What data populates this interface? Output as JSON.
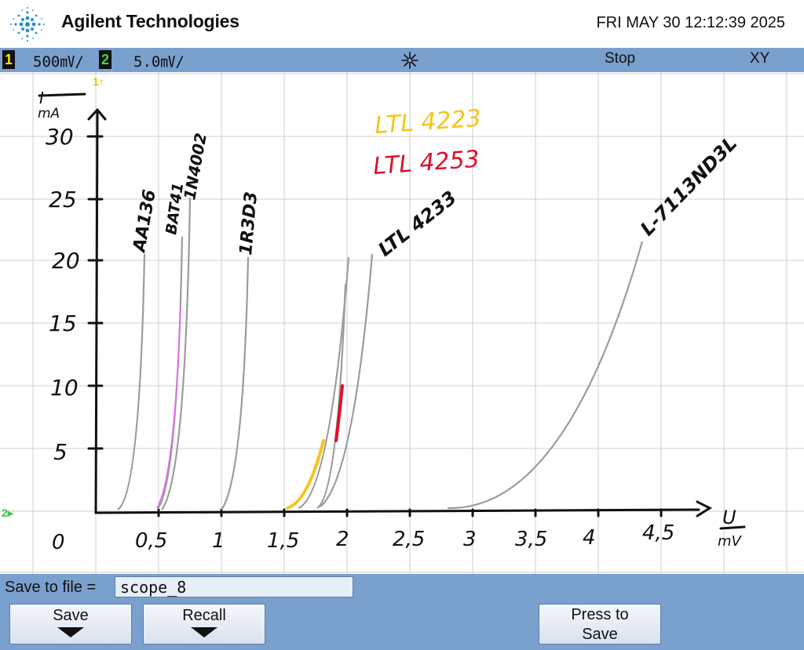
{
  "header": {
    "brand": "Agilent Technologies",
    "datetime": "FRI MAY 30 12:12:39 2025"
  },
  "status": {
    "ch1_number": "1",
    "ch1_scale": "500㎷/",
    "ch2_number": "2",
    "ch2_scale": "5.0㎷/",
    "trigger_icon": "asterisk-trigger-icon",
    "run_state": "Stop",
    "mode": "XY"
  },
  "markers": {
    "ch1": "1↑",
    "ch2": "2▸"
  },
  "plot": {
    "y_unit_top": "I",
    "y_unit_bottom": "mA",
    "y_ticks": [
      "30",
      "25",
      "20",
      "15",
      "10",
      "5"
    ],
    "x_unit_top": "U",
    "x_unit_bottom": "mV",
    "x_origin": "0",
    "x_ticks": [
      "0,5",
      "1",
      "1,5",
      "2",
      "2,5",
      "3",
      "3,5",
      "4",
      "4,5"
    ],
    "curve_labels": {
      "aa136": "AA136",
      "bat": "BAT41",
      "n4002": "1N4002",
      "ir": "1R3D3",
      "ltl": "LTL 4233",
      "l7": "L-7113ND3L"
    },
    "legend_yellow": "LTL 4223",
    "legend_red": "LTL 4253",
    "colors": {
      "trace": "#9b9b9b",
      "grid": "#cfcfcf",
      "ink": "#111111",
      "yellow": "#f5c518",
      "red": "#e0102a",
      "pink": "#e070e8"
    }
  },
  "softkeys": {
    "save_to_file_label": "Save to file =",
    "filename": "scope_8",
    "save": "Save",
    "recall": "Recall",
    "press_to_save_1": "Press to",
    "press_to_save_2": "Save"
  }
}
